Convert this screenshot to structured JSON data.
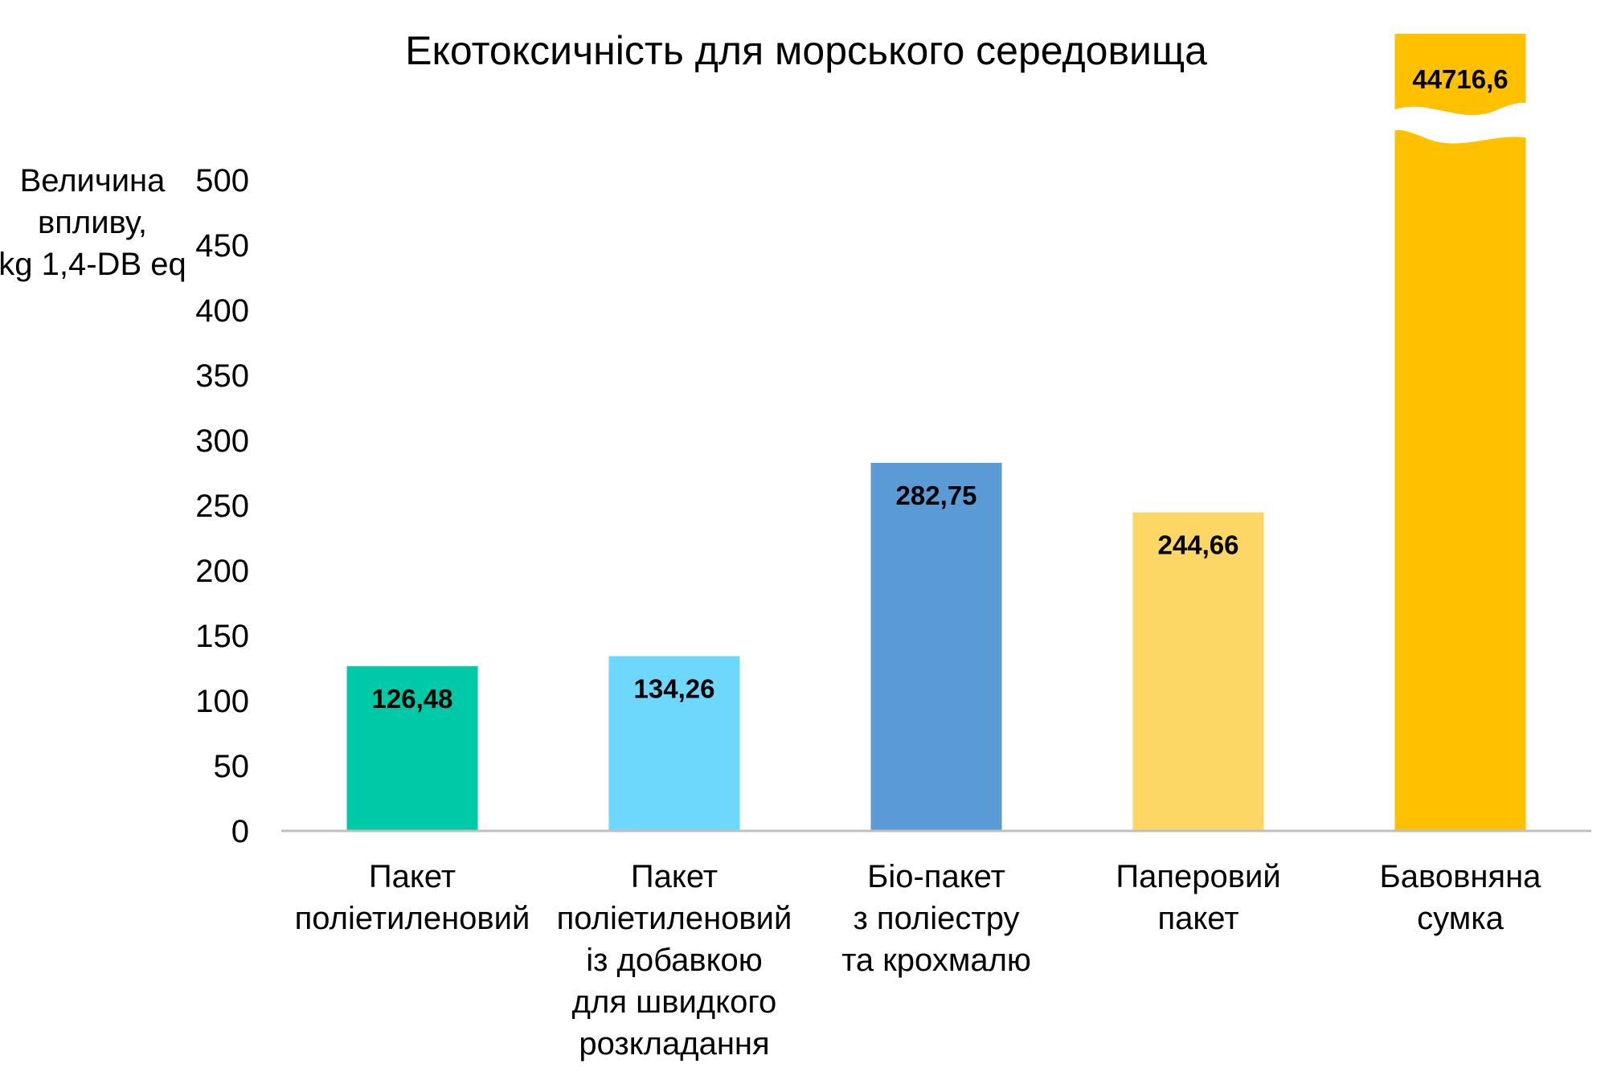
{
  "chart_data": {
    "type": "bar",
    "title": "Екотоксичність для морського середовища",
    "ylabel": [
      "Величина",
      "впливу,",
      "kg 1,4-DB eq"
    ],
    "ylim": [
      0,
      500
    ],
    "yticks": [
      0,
      50,
      100,
      150,
      200,
      250,
      300,
      350,
      400,
      450,
      500
    ],
    "axis_break": true,
    "grid": false,
    "categories": [
      [
        "Пакет",
        "поліетиленовий"
      ],
      [
        "Пакет",
        "поліетиленовий",
        "із добавкою",
        "для швидкого",
        "розкладання"
      ],
      [
        "Біо-пакет",
        "з поліестру",
        "та крохмалю"
      ],
      [
        "Паперовий",
        "пакет"
      ],
      [
        "Бавовняна",
        "сумка"
      ]
    ],
    "values": [
      126.48,
      134.26,
      282.75,
      244.66,
      44716.6
    ],
    "value_labels": [
      "126,48",
      "134,26",
      "282,75",
      "244,66",
      "44716,6"
    ],
    "colors": [
      "#00C9A7",
      "#6ED8FC",
      "#5B9BD5",
      "#FCD766",
      "#FFC000"
    ]
  }
}
